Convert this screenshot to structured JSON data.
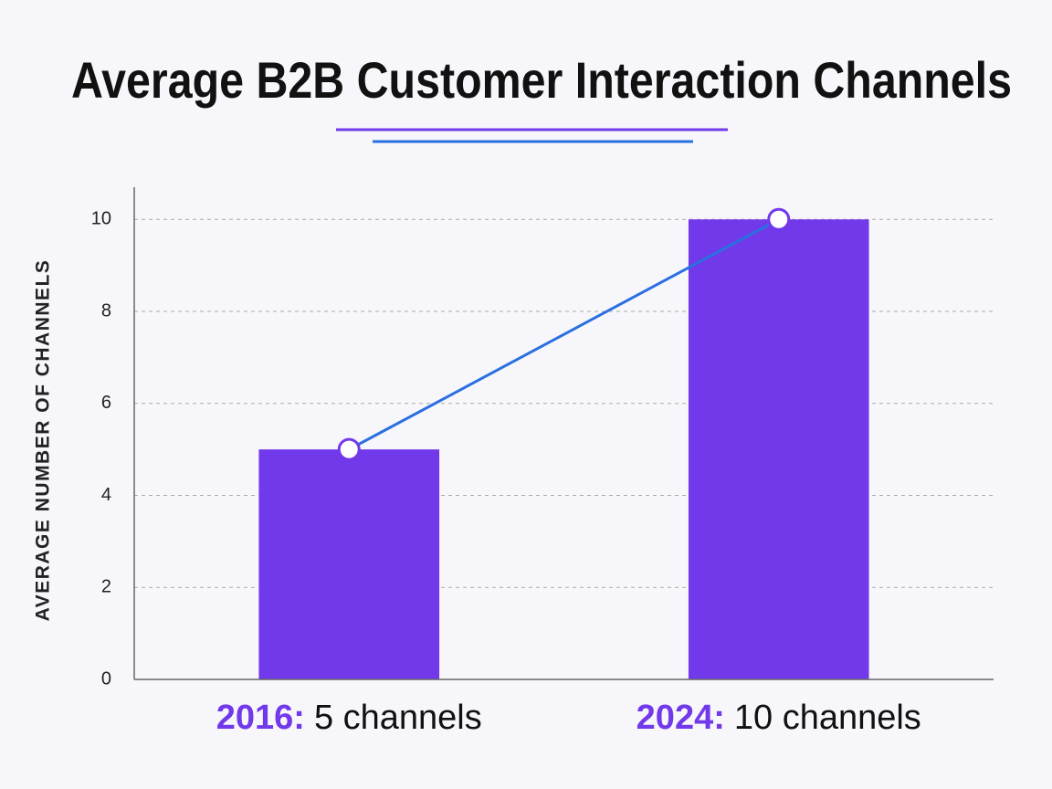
{
  "chart_data": {
    "type": "bar",
    "title": "Average B2B Customer Interaction Channels",
    "y_label": "AVERAGE NUMBER OF CHANNELS",
    "categories": [
      "2016:",
      "2024:"
    ],
    "values": [
      5,
      10
    ],
    "value_labels": [
      "5 channels",
      "10 channels"
    ],
    "color": "#7239ea",
    "line_color": "#2a6fe0",
    "ylim": [
      0,
      10.7
    ],
    "yticks": [
      0,
      2,
      4,
      6,
      8,
      10
    ],
    "grid": true
  }
}
